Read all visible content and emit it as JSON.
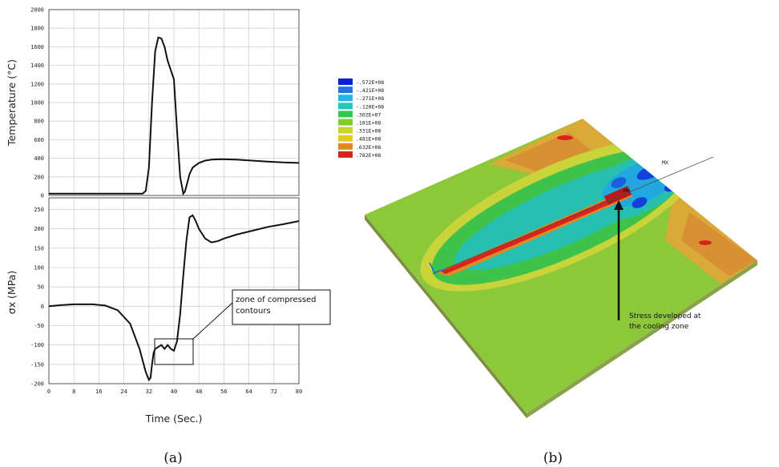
{
  "chart_data": [
    {
      "type": "line",
      "panel": "a-top",
      "ylabel": "Temperature (°C)",
      "xlim": [
        0,
        80
      ],
      "ylim": [
        0,
        2000
      ],
      "yticks": [
        "0",
        "200",
        "400",
        "600",
        "800",
        "1000",
        "1200",
        "1400",
        "1600",
        "1800",
        "2000"
      ],
      "series": [
        {
          "x": [
            0,
            30,
            31,
            32,
            33,
            34,
            35,
            36,
            37,
            38,
            39,
            40,
            41,
            42,
            43,
            43.5,
            44,
            45,
            46,
            48,
            50,
            52,
            55,
            60,
            65,
            70,
            75,
            80
          ],
          "y": [
            20,
            20,
            50,
            300,
            1000,
            1550,
            1700,
            1690,
            1600,
            1450,
            1350,
            1250,
            700,
            200,
            20,
            40,
            100,
            230,
            300,
            350,
            375,
            385,
            390,
            385,
            375,
            365,
            355,
            350
          ]
        }
      ]
    },
    {
      "type": "line",
      "panel": "a-bottom",
      "xlabel": "Time (Sec.)",
      "ylabel": "σx (MPa)",
      "xlim": [
        0,
        80
      ],
      "ylim": [
        -200,
        280
      ],
      "xticks": [
        "0",
        "8",
        "16",
        "24",
        "32",
        "40",
        "48",
        "56",
        "64",
        "72",
        "80"
      ],
      "yticks": [
        "-200",
        "-150",
        "-100",
        "-50",
        "0",
        "50",
        "100",
        "150",
        "200",
        "250"
      ],
      "series": [
        {
          "x": [
            0,
            4,
            8,
            14,
            18,
            22,
            26,
            29,
            31,
            32,
            32.5,
            33,
            33.5,
            34,
            35,
            36,
            37,
            38,
            39,
            40,
            41,
            42,
            43,
            44,
            45,
            46,
            47,
            48,
            50,
            52,
            54,
            56,
            60,
            65,
            70,
            75,
            80
          ],
          "y": [
            0,
            3,
            5,
            5,
            2,
            -10,
            -45,
            -110,
            -170,
            -190,
            -185,
            -150,
            -120,
            -110,
            -105,
            -100,
            -110,
            -100,
            -110,
            -115,
            -90,
            -20,
            80,
            170,
            230,
            235,
            220,
            200,
            175,
            165,
            168,
            175,
            185,
            195,
            205,
            212,
            220
          ]
        }
      ],
      "annotation": "zone of compressed contours"
    },
    {
      "type": "heatmap",
      "panel": "b",
      "legend": [
        {
          "label": "-.572E+08",
          "color": "#0a1fd6"
        },
        {
          "label": "-.421E+08",
          "color": "#1a78e0"
        },
        {
          "label": "-.271E+08",
          "color": "#22b7e8"
        },
        {
          "label": "-.120E+08",
          "color": "#22c8b8"
        },
        {
          "label": ".302E+07",
          "color": "#2ec84a"
        },
        {
          "label": ".181E+08",
          "color": "#7bcf2a"
        },
        {
          "label": ".331E+08",
          "color": "#c8d42a"
        },
        {
          "label": ".481E+08",
          "color": "#e8c825"
        },
        {
          "label": ".632E+08",
          "color": "#e08a22"
        },
        {
          "label": ".782E+08",
          "color": "#d8241c"
        }
      ],
      "annotation": "Stress developed at the cooling zone",
      "markers": [
        "MX",
        "MN"
      ]
    }
  ],
  "captions": {
    "a": "(a)",
    "b": "(b)"
  }
}
